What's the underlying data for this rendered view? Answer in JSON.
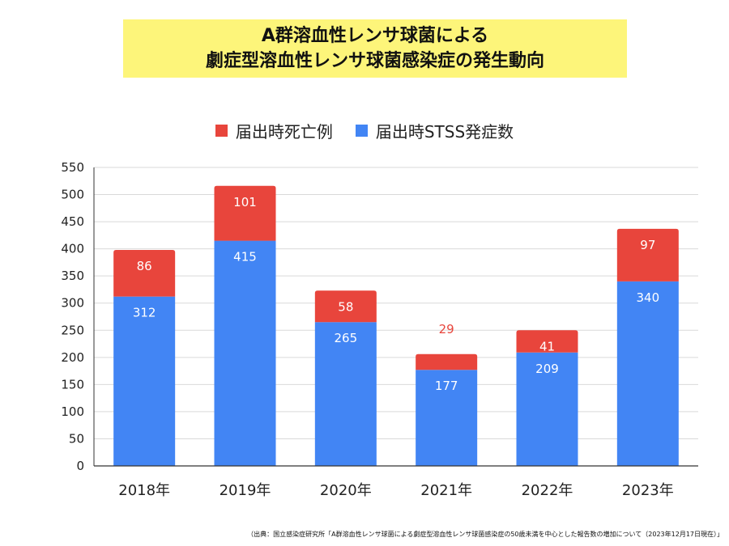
{
  "title": {
    "line1": "A群溶血性レンサ球菌による",
    "line2": "劇症型溶血性レンサ球菌感染症の発生動向"
  },
  "colors": {
    "title_bg": "#fdf57a",
    "deaths": "#e8453c",
    "cases": "#4285f4",
    "grid": "#d9d9d9",
    "axis": "#333333"
  },
  "chart_data": {
    "type": "bar",
    "stacked": true,
    "categories": [
      "2018年",
      "2019年",
      "2020年",
      "2021年",
      "2022年",
      "2023年"
    ],
    "series": [
      {
        "name": "届出時STSS発症数",
        "values": [
          312,
          415,
          265,
          177,
          209,
          340
        ],
        "color": "#4285f4",
        "label_color": "#ffffff"
      },
      {
        "name": "届出時死亡例",
        "values": [
          86,
          101,
          58,
          29,
          41,
          97
        ],
        "color": "#e8453c",
        "label_color": "#ffffff"
      }
    ],
    "ylim": [
      0,
      550
    ],
    "yticks": [
      "0",
      "50",
      "100",
      "150",
      "200",
      "250",
      "300",
      "350",
      "400",
      "450",
      "500",
      "550"
    ],
    "grid": true,
    "legend_position": "top",
    "legend_order": [
      "届出時死亡例",
      "届出時STSS発症数"
    ]
  },
  "footnote": "（出典：国立感染症研究所「A群溶血性レンサ球菌による劇症型溶血性レンサ球菌感染症の50歳未満を中心とした報告数の増加について（2023年12月17日現在）」"
}
